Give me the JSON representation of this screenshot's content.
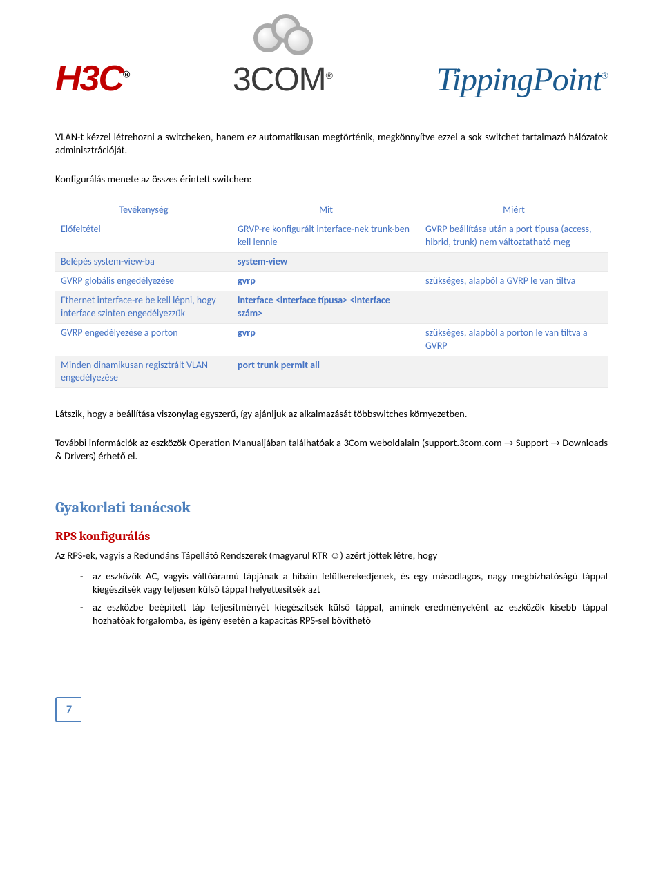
{
  "logos": {
    "h3c": "H3C",
    "threecom": "3COM",
    "tippingpoint": "TippingPoint"
  },
  "intro_para": "VLAN-t kézzel létrehozni a switcheken, hanem ez automatikusan megtörténik, megkönnyítve ezzel a sok switchet tartalmazó hálózatok adminisztrációját.",
  "config_intro": "Konfigurálás menete az összes érintett switchen:",
  "table": {
    "headers": [
      "Tevékenység",
      "Mit",
      "Miért"
    ],
    "rows": [
      {
        "band": false,
        "activity": "Előfeltétel",
        "what": "GRVP-re konfigurált interface-nek trunk-ben kell lennie",
        "what_bold": false,
        "why": "GVRP beállítása után a port típusa (access, hibrid, trunk) nem változtatható meg"
      },
      {
        "band": true,
        "activity": "Belépés system-view-ba",
        "what": "system-view",
        "what_bold": true,
        "why": ""
      },
      {
        "band": false,
        "activity": "GVRP globális engedélyezése",
        "what": "gvrp",
        "what_bold": true,
        "why": "szükséges, alapból a GVRP le van tiltva"
      },
      {
        "band": true,
        "activity": "Ethernet interface-re be kell lépni, hogy interface szinten engedélyezzük",
        "what": "interface <interface típusa> <interface szám>",
        "what_bold": true,
        "why": ""
      },
      {
        "band": false,
        "activity": "GVRP engedélyezése a porton",
        "what": "gvrp",
        "what_bold": true,
        "why": "szükséges, alapból a porton le van tiltva a GVRP"
      },
      {
        "band": true,
        "activity": "Minden dinamikusan regisztrált VLAN engedélyezése",
        "what": "port trunk permit all",
        "what_bold": true,
        "why": ""
      }
    ]
  },
  "after_table_1": "Látszik, hogy a beállítása viszonylag egyszerű, így ajánljuk az alkalmazását többswitches környezetben.",
  "after_table_2": "További információk az eszközök Operation Manualjában találhatóak a 3Com weboldalain (support.3com.com → Support → Downloads & Drivers) érhető el.",
  "section_title": "Gyakorlati tanácsok",
  "subsection_title": "RPS konfigurálás",
  "rps_intro": "Az RPS-ek, vagyis a Redundáns Tápellátó Rendszerek (magyarul RTR ☺) azért jöttek létre, hogy",
  "rps_bullets": [
    "az eszközök AC, vagyis váltóáramú tápjának a hibáin felülkerekedjenek, és egy másodlagos, nagy megbízhatóságú táppal kiegészítsék vagy teljesen külső táppal helyettesítsék azt",
    "az eszközbe beépített táp teljesítményét kiegészítsék külső táppal, aminek eredményeként az eszközök kisebb táppal hozhatóak forgalomba, és igény esetén a kapacitás RPS-sel bővíthető"
  ],
  "page_number": "7",
  "colors": {
    "blue_heading": "#4f81bd",
    "table_text": "#4472c4",
    "red_heading": "#c00000",
    "band_bg": "#f2f2f2",
    "tp_logo": "#1b5a8e"
  }
}
